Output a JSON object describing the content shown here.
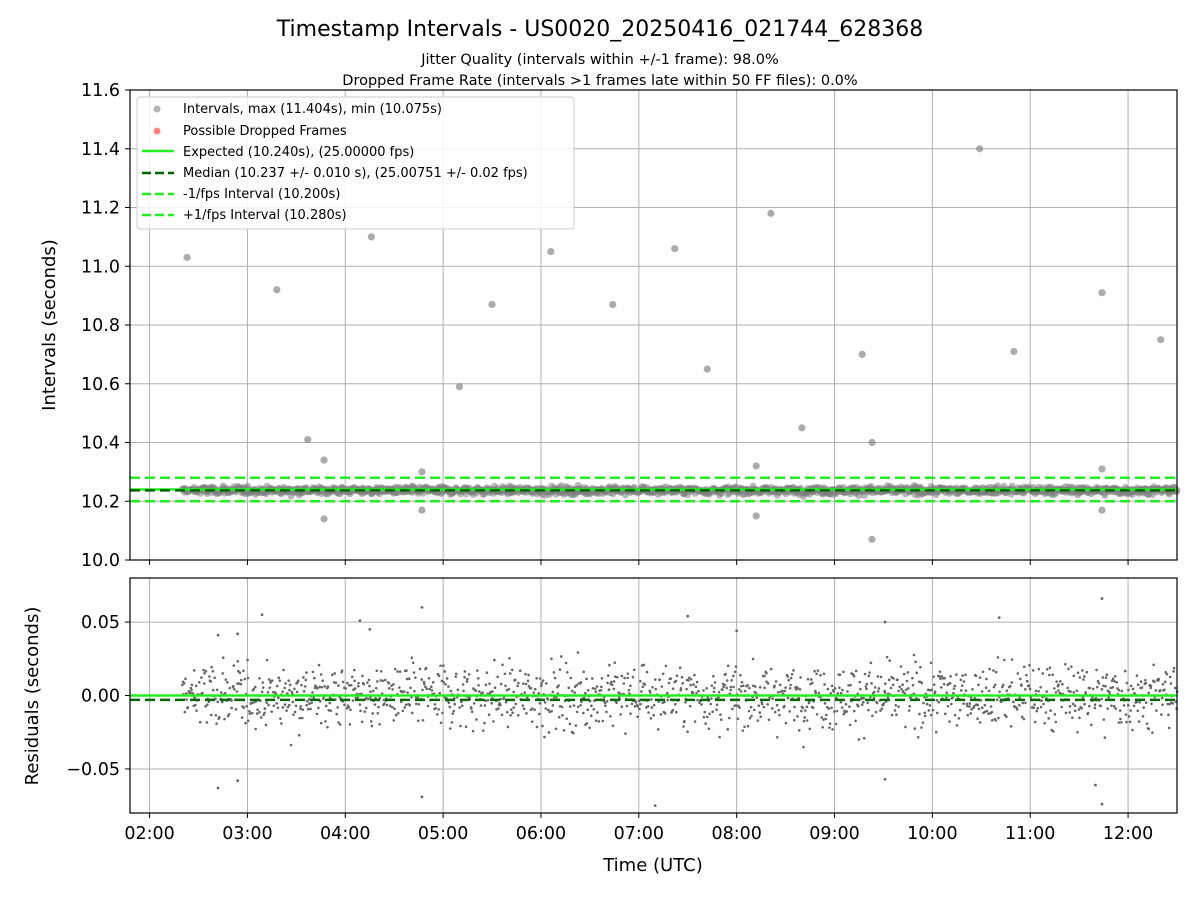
{
  "title": "Timestamp Intervals - US0020_20250416_021744_628368",
  "subtitle_lines": [
    "Jitter Quality (intervals within +/-1 frame): 98.0%",
    "Dropped Frame Rate (intervals >1 frames late within 50 FF files): 0.0%"
  ],
  "colors": {
    "points": "#808080",
    "dropped": "#ff6666",
    "expected": "#22ee22",
    "median": "#006400",
    "grid": "#b0b0b0"
  },
  "chart_data": [
    {
      "type": "scatter",
      "panel": "top",
      "ylabel": "Intervals (seconds)",
      "ylim": [
        10.0,
        11.6
      ],
      "yticks": [
        "10.0",
        "10.2",
        "10.4",
        "10.6",
        "10.8",
        "11.0",
        "11.2",
        "11.4",
        "11.6"
      ],
      "ytick_values": [
        10.0,
        10.2,
        10.4,
        10.6,
        10.8,
        11.0,
        11.2,
        11.4,
        11.6
      ],
      "grid": true,
      "legend_position": "top-left",
      "series": [
        {
          "name": "Intervals, max (11.404s), min (10.075s)",
          "kind": "points",
          "time_range": [
            "02:20",
            "12:30"
          ],
          "outliers": [
            {
              "t": "02:23",
              "v": 11.03
            },
            {
              "t": "03:18",
              "v": 10.92
            },
            {
              "t": "03:37",
              "v": 10.41
            },
            {
              "t": "03:47",
              "v": 10.34
            },
            {
              "t": "03:47",
              "v": 10.14
            },
            {
              "t": "04:16",
              "v": 11.1
            },
            {
              "t": "04:47",
              "v": 10.3
            },
            {
              "t": "04:47",
              "v": 10.17
            },
            {
              "t": "05:10",
              "v": 10.59
            },
            {
              "t": "05:30",
              "v": 10.87
            },
            {
              "t": "06:06",
              "v": 11.05
            },
            {
              "t": "06:44",
              "v": 10.87
            },
            {
              "t": "07:22",
              "v": 11.06
            },
            {
              "t": "07:42",
              "v": 10.65
            },
            {
              "t": "08:12",
              "v": 10.32
            },
            {
              "t": "08:12",
              "v": 10.15
            },
            {
              "t": "08:21",
              "v": 11.18
            },
            {
              "t": "08:40",
              "v": 10.45
            },
            {
              "t": "09:17",
              "v": 10.7
            },
            {
              "t": "09:23",
              "v": 10.4
            },
            {
              "t": "09:23",
              "v": 10.07
            },
            {
              "t": "10:29",
              "v": 11.4
            },
            {
              "t": "10:50",
              "v": 10.71
            },
            {
              "t": "11:44",
              "v": 10.91
            },
            {
              "t": "11:44",
              "v": 10.31
            },
            {
              "t": "11:44",
              "v": 10.17
            },
            {
              "t": "12:20",
              "v": 10.75
            }
          ]
        },
        {
          "name": "Possible Dropped Frames",
          "kind": "points",
          "count": 0
        },
        {
          "name": "Expected (10.240s), (25.00000 fps)",
          "kind": "hline",
          "value": 10.24,
          "style": "solid"
        },
        {
          "name": "Median (10.237 +/- 0.010 s), (25.00751 +/- 0.02 fps)",
          "kind": "hline",
          "value": 10.237,
          "style": "dashed"
        },
        {
          "name": "-1/fps Interval (10.200s)",
          "kind": "hline",
          "value": 10.2,
          "style": "dashed"
        },
        {
          "name": "+1/fps Interval (10.280s)",
          "kind": "hline",
          "value": 10.28,
          "style": "dashed"
        }
      ]
    },
    {
      "type": "scatter",
      "panel": "bottom",
      "ylabel": "Residuals (seconds)",
      "xlabel": "Time (UTC)",
      "ylim": [
        -0.08,
        0.08
      ],
      "yticks": [
        "0.05",
        "0.00",
        "−0.05"
      ],
      "ytick_values": [
        0.05,
        0.0,
        -0.05
      ],
      "xlim": [
        "01:48",
        "12:30"
      ],
      "xticks": [
        "02:00",
        "03:00",
        "04:00",
        "05:00",
        "06:00",
        "07:00",
        "08:00",
        "09:00",
        "10:00",
        "11:00",
        "12:00"
      ],
      "grid": true,
      "series": [
        {
          "kind": "points",
          "time_range": [
            "02:20",
            "12:30"
          ],
          "outliers": [
            {
              "t": "02:42",
              "v": 0.041
            },
            {
              "t": "02:42",
              "v": -0.063
            },
            {
              "t": "02:54",
              "v": 0.042
            },
            {
              "t": "02:54",
              "v": -0.058
            },
            {
              "t": "03:09",
              "v": 0.055
            },
            {
              "t": "04:09",
              "v": 0.051
            },
            {
              "t": "04:15",
              "v": 0.045
            },
            {
              "t": "04:47",
              "v": 0.06
            },
            {
              "t": "04:47",
              "v": -0.069
            },
            {
              "t": "07:10",
              "v": -0.075
            },
            {
              "t": "07:30",
              "v": 0.054
            },
            {
              "t": "08:00",
              "v": 0.044
            },
            {
              "t": "09:31",
              "v": 0.05
            },
            {
              "t": "09:31",
              "v": -0.057
            },
            {
              "t": "10:41",
              "v": 0.053
            },
            {
              "t": "11:40",
              "v": -0.061
            },
            {
              "t": "11:44",
              "v": 0.066
            },
            {
              "t": "11:44",
              "v": -0.074
            }
          ]
        },
        {
          "kind": "hline",
          "value": 0.0,
          "style": "solid"
        },
        {
          "kind": "hline",
          "value": -0.003,
          "style": "dashed"
        }
      ]
    }
  ]
}
